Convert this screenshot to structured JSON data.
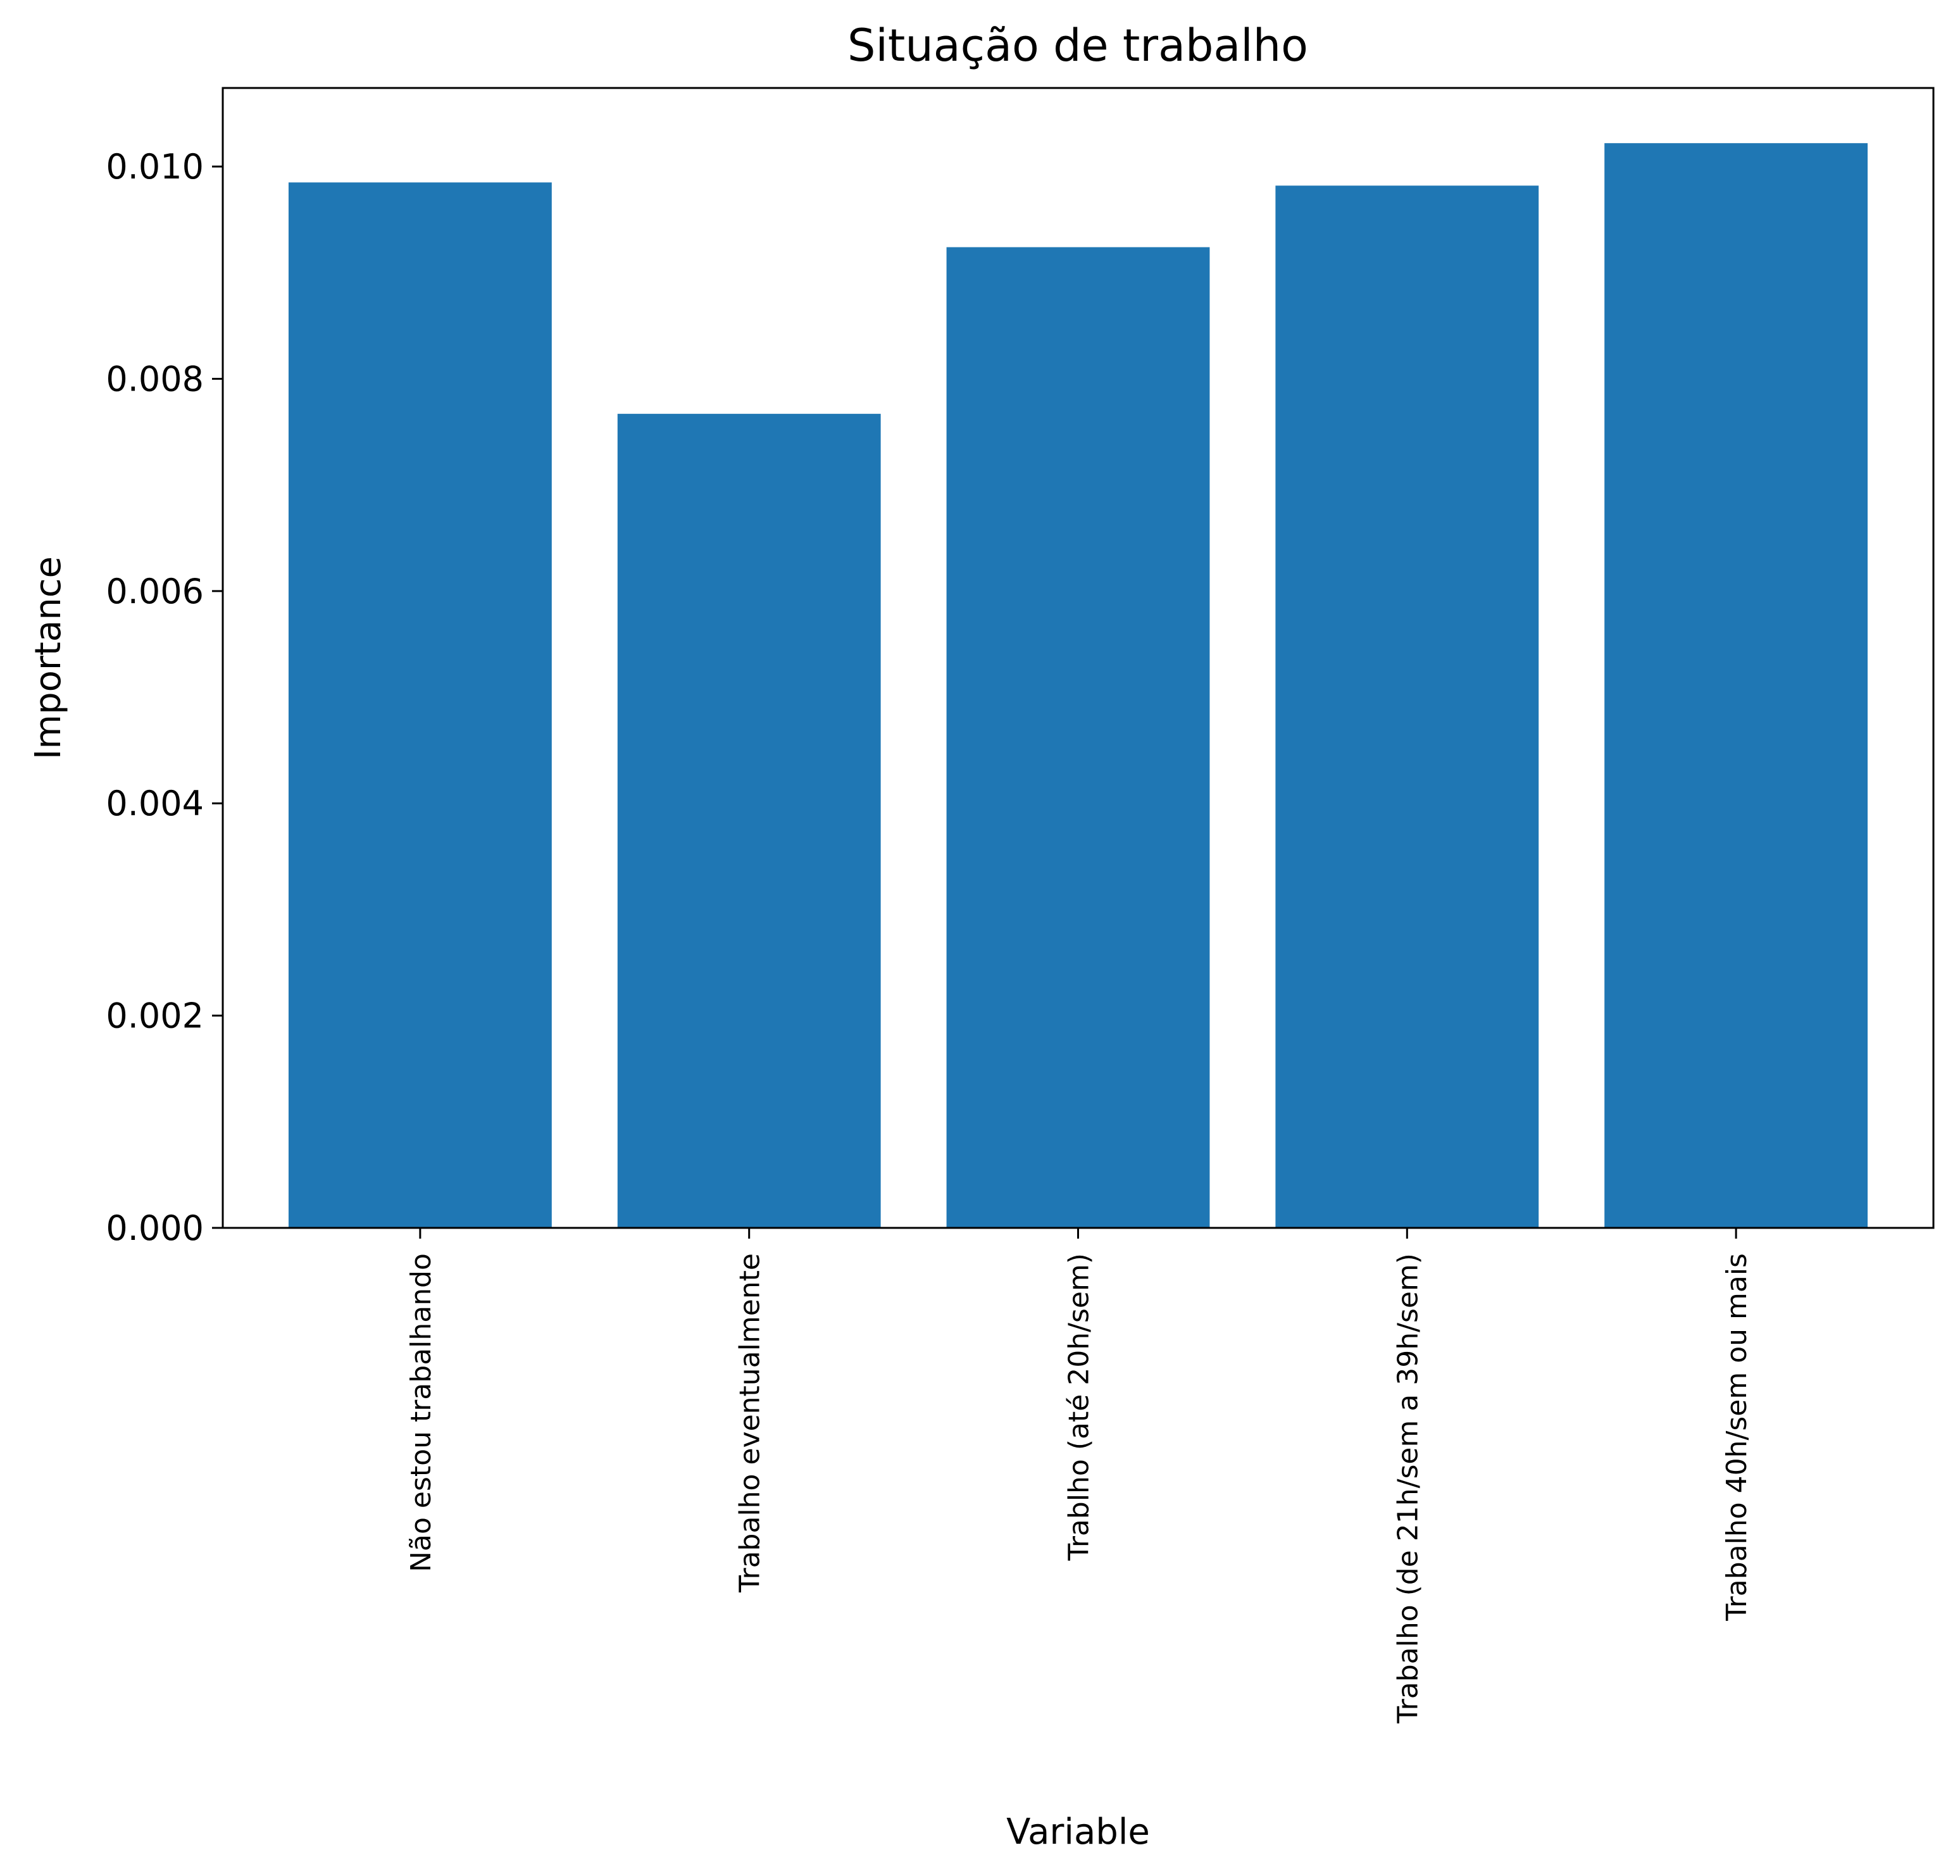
{
  "chart_data": {
    "type": "bar",
    "title": "Situação de trabalho",
    "xlabel": "Variable",
    "ylabel": "Importance",
    "categories": [
      "Não estou trabalhando",
      "Trabalho eventualmente",
      "Trablho (até 20h/sem)",
      "Trabalho (de 21h/sem a 39h/sem)",
      "Trabalho 40h/sem ou mais"
    ],
    "values": [
      0.00985,
      0.00767,
      0.00924,
      0.00982,
      0.01022
    ],
    "ylim": [
      0,
      0.01074
    ],
    "yticks": [
      0.0,
      0.002,
      0.004,
      0.006,
      0.008,
      0.01
    ],
    "ytick_labels": [
      "0.000",
      "0.002",
      "0.004",
      "0.006",
      "0.008",
      "0.010"
    ],
    "bar_color": "#1f77b4",
    "grid": false,
    "legend": "none"
  }
}
